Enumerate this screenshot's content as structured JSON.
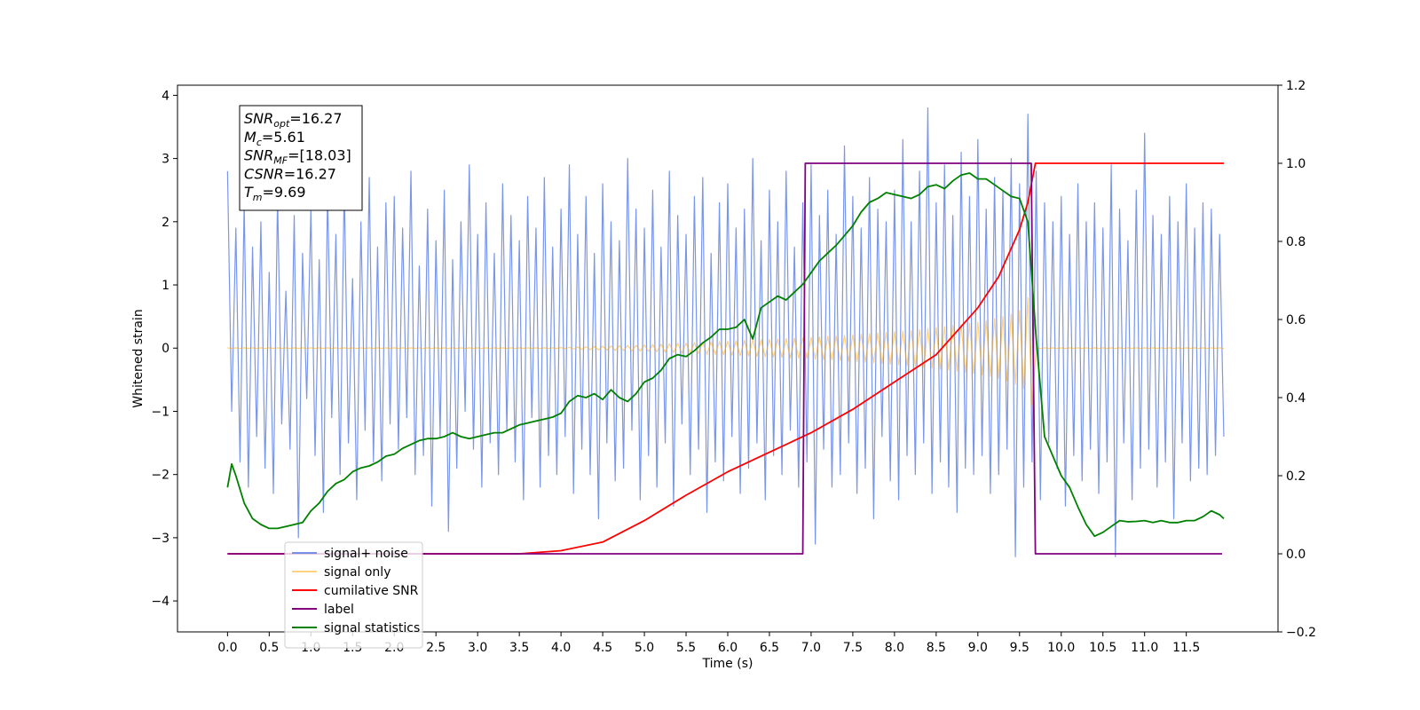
{
  "chart_data": {
    "type": "line",
    "xlabel": "Time (s)",
    "ylabel": "Whitened strain",
    "xlim": [
      -0.6,
      12.6
    ],
    "ylim": [
      -4.49,
      4.16
    ],
    "y2lim": [
      -0.2,
      1.2
    ],
    "xticks": [
      {
        "value": 0,
        "label": "0.0"
      },
      0.5,
      {
        "value": 1,
        "label": "1.0"
      },
      1.5,
      {
        "value": 2,
        "label": "2.0"
      },
      2.5,
      {
        "value": 3,
        "label": "3.0"
      },
      3.5,
      {
        "value": 4,
        "label": "4.0"
      },
      4.5,
      {
        "value": 5,
        "label": "5.0"
      },
      5.5,
      {
        "value": 6,
        "label": "6.0"
      },
      6.5,
      {
        "value": 7,
        "label": "7.0"
      },
      7.5,
      {
        "value": 8,
        "label": "8.0"
      },
      8.5,
      {
        "value": 9,
        "label": "9.0"
      },
      9.5,
      {
        "value": 10,
        "label": "10.0"
      },
      10.5,
      {
        "value": 11,
        "label": "11.0"
      },
      11.5
    ],
    "yticks": [
      {
        "value": -4,
        "label": "−4"
      },
      {
        "value": -3,
        "label": "−3"
      },
      {
        "value": -2,
        "label": "−2"
      },
      {
        "value": -1,
        "label": "−1"
      },
      0,
      1,
      2,
      3,
      4
    ],
    "y2ticks": [
      {
        "value": -0.2,
        "label": "−0.2"
      },
      {
        "value": 0,
        "label": "0.0"
      },
      0.2,
      0.4,
      0.6,
      0.8,
      {
        "value": 1,
        "label": "1.0"
      },
      1.2
    ],
    "legend": "lower left",
    "annotations": [
      {
        "main": "SNR",
        "sub": "opt",
        "text": "=16.27"
      },
      {
        "main": "M",
        "sub": "c",
        "text": "=5.61"
      },
      {
        "main": "SNR",
        "sub": "MF",
        "text": "=[18.03]"
      },
      {
        "main": "CSNR",
        "sub": "",
        "text": "=16.27"
      },
      {
        "main": "T",
        "sub": "m",
        "text": "=9.69"
      }
    ],
    "x": [
      0,
      0.05,
      0.1,
      0.15,
      0.2,
      0.25,
      0.3,
      0.35,
      0.4,
      0.45,
      0.5,
      0.55,
      0.6,
      0.65,
      0.7,
      0.75,
      0.8,
      0.85,
      0.9,
      0.95,
      1,
      1.05,
      1.1,
      1.15,
      1.2,
      1.25,
      1.3,
      1.35,
      1.4,
      1.45,
      1.5,
      1.55,
      1.6,
      1.65,
      1.7,
      1.75,
      1.8,
      1.85,
      1.9,
      1.95,
      2,
      2.05,
      2.1,
      2.15,
      2.2,
      2.25,
      2.3,
      2.35,
      2.4,
      2.45,
      2.5,
      2.55,
      2.6,
      2.65,
      2.7,
      2.75,
      2.8,
      2.85,
      2.9,
      2.95,
      3,
      3.05,
      3.1,
      3.15,
      3.2,
      3.25,
      3.3,
      3.35,
      3.4,
      3.45,
      3.5,
      3.55,
      3.6,
      3.65,
      3.7,
      3.75,
      3.8,
      3.85,
      3.9,
      3.95,
      4,
      4.05,
      4.1,
      4.15,
      4.2,
      4.25,
      4.3,
      4.35,
      4.4,
      4.45,
      4.5,
      4.55,
      4.6,
      4.65,
      4.7,
      4.75,
      4.8,
      4.85,
      4.9,
      4.95,
      5,
      5.05,
      5.1,
      5.15,
      5.2,
      5.25,
      5.3,
      5.35,
      5.4,
      5.45,
      5.5,
      5.55,
      5.6,
      5.65,
      5.7,
      5.75,
      5.8,
      5.85,
      5.9,
      5.95,
      6,
      6.05,
      6.1,
      6.15,
      6.2,
      6.25,
      6.3,
      6.35,
      6.4,
      6.45,
      6.5,
      6.55,
      6.6,
      6.65,
      6.7,
      6.75,
      6.8,
      6.85,
      6.9,
      6.95,
      7,
      7.05,
      7.1,
      7.15,
      7.2,
      7.25,
      7.3,
      7.35,
      7.4,
      7.45,
      7.5,
      7.55,
      7.6,
      7.65,
      7.7,
      7.75,
      7.8,
      7.85,
      7.9,
      7.95,
      8,
      8.05,
      8.1,
      8.15,
      8.2,
      8.25,
      8.3,
      8.35,
      8.4,
      8.45,
      8.5,
      8.55,
      8.6,
      8.65,
      8.7,
      8.75,
      8.8,
      8.85,
      8.9,
      8.95,
      9,
      9.05,
      9.1,
      9.15,
      9.2,
      9.25,
      9.3,
      9.35,
      9.4,
      9.45,
      9.5,
      9.55,
      9.6,
      9.65,
      9.7,
      9.75,
      9.8,
      9.85,
      9.9,
      9.95,
      10,
      10.05,
      10.1,
      10.15,
      10.2,
      10.25,
      10.3,
      10.35,
      10.4,
      10.45,
      10.5,
      10.55,
      10.6,
      10.65,
      10.7,
      10.75,
      10.8,
      10.85,
      10.9,
      10.95,
      11,
      11.05,
      11.1,
      11.15,
      11.2,
      11.25,
      11.3,
      11.35,
      11.4,
      11.45,
      11.5,
      11.55,
      11.6,
      11.65,
      11.7,
      11.75,
      11.8,
      11.85,
      11.9,
      11.95
    ],
    "series": [
      {
        "name": "signal+ noise",
        "color": "#4169e1",
        "values": [
          2.8,
          -1.0,
          1.9,
          -1.8,
          2.3,
          -2.2,
          1.6,
          -1.4,
          2.0,
          -1.9,
          1.2,
          -2.3,
          2.4,
          -1.2,
          0.9,
          -1.6,
          2.1,
          -3.0,
          1.5,
          -0.8,
          2.2,
          -1.7,
          1.4,
          -2.6,
          2.5,
          -1.1,
          1.8,
          -2.0,
          2.6,
          -1.5,
          1.1,
          -2.4,
          2.0,
          -1.3,
          2.7,
          -1.8,
          1.6,
          -2.1,
          2.3,
          -1.2,
          2.4,
          -1.6,
          1.9,
          -1.1,
          2.8,
          -2.0,
          1.3,
          -1.7,
          2.2,
          -2.5,
          1.7,
          -1.4,
          2.5,
          -2.9,
          1.4,
          -1.9,
          2.0,
          -1.0,
          2.9,
          -1.6,
          1.8,
          -2.2,
          2.3,
          -1.5,
          1.5,
          -2.0,
          2.6,
          -1.3,
          2.1,
          -1.8,
          1.7,
          -2.4,
          2.4,
          -1.1,
          1.9,
          -2.2,
          2.7,
          -1.7,
          1.6,
          -2.0,
          2.2,
          -1.4,
          2.9,
          -2.3,
          1.8,
          -1.6,
          2.4,
          -2.0,
          1.5,
          -2.7,
          2.6,
          -1.5,
          2.0,
          -2.1,
          1.7,
          -1.9,
          3.0,
          -1.3,
          2.2,
          -2.4,
          1.9,
          -1.7,
          2.5,
          -2.2,
          1.6,
          -1.5,
          2.8,
          -2.5,
          2.1,
          -1.2,
          1.8,
          -2.0,
          2.4,
          -1.6,
          2.7,
          -2.6,
          1.5,
          -1.8,
          2.3,
          -2.1,
          2.6,
          -1.4,
          1.9,
          -2.3,
          2.2,
          -1.9,
          3.0,
          -1.5,
          1.7,
          -2.4,
          2.5,
          -1.7,
          2.0,
          -2.0,
          2.8,
          -1.3,
          1.6,
          -2.2,
          2.3,
          -1.8,
          2.9,
          -3.1,
          2.1,
          -1.6,
          2.5,
          -2.2,
          1.8,
          -2.0,
          3.2,
          -1.5,
          2.4,
          -2.3,
          1.9,
          -1.9,
          2.7,
          -2.7,
          2.2,
          -1.4,
          2.0,
          -2.1,
          2.5,
          -2.4,
          3.3,
          -1.7,
          2.0,
          -2.0,
          2.8,
          -1.5,
          3.8,
          -2.3,
          2.3,
          -1.8,
          2.9,
          -2.2,
          2.1,
          -2.6,
          3.1,
          -1.9,
          2.4,
          -2.0,
          3.3,
          -1.7,
          2.2,
          -2.3,
          2.7,
          -2.0,
          2.5,
          -1.6,
          3.0,
          -3.3,
          2.6,
          -2.2,
          3.7,
          -1.8,
          2.8,
          -2.4,
          2.3,
          -1.5,
          2.0,
          -1.9,
          2.4,
          -2.5,
          1.8,
          -1.7,
          2.6,
          -2.1,
          2.0,
          -1.6,
          2.3,
          -2.3,
          1.9,
          -1.8,
          2.9,
          -3.3,
          2.2,
          -1.5,
          1.7,
          -2.4,
          2.5,
          -1.9,
          3.4,
          -1.6,
          2.1,
          -2.2,
          1.8,
          -1.8,
          2.4,
          -2.7,
          2.0,
          -1.5,
          2.6,
          -2.1,
          1.9,
          -1.9,
          2.3,
          -2.0,
          2.2,
          -1.7,
          1.8,
          -1.4
        ]
      },
      {
        "name": "signal only",
        "color": "#ffa500",
        "values": [
          0.005,
          -0.005,
          0.005,
          -0.005,
          0.005,
          -0.005,
          0.005,
          -0.005,
          0.005,
          -0.005,
          0.005,
          -0.005,
          0.005,
          -0.005,
          0.005,
          -0.005,
          0.005,
          -0.005,
          0.005,
          -0.005,
          0.005,
          -0.005,
          0.005,
          -0.005,
          0.005,
          -0.005,
          0.005,
          -0.005,
          0.005,
          -0.005,
          0.005,
          -0.005,
          0.005,
          -0.005,
          0.005,
          -0.005,
          0.005,
          -0.005,
          0.005,
          -0.005,
          0.005,
          -0.005,
          0.005,
          -0.005,
          0.005,
          -0.005,
          0.005,
          -0.005,
          0.005,
          -0.005,
          0.005,
          -0.005,
          0.005,
          -0.005,
          0.005,
          -0.005,
          0.005,
          -0.005,
          0.005,
          -0.005,
          0.005,
          -0.005,
          0.005,
          -0.005,
          0.005,
          -0.005,
          0.005,
          -0.005,
          0.005,
          -0.005,
          0.005,
          -0.005,
          0.005,
          -0.005,
          0.005,
          -0.005,
          0.005,
          -0.005,
          0.005,
          -0.005,
          0.01,
          -0.012,
          0.014,
          -0.016,
          0.018,
          -0.02,
          0.022,
          -0.024,
          0.026,
          -0.028,
          0.03,
          -0.032,
          0.034,
          -0.036,
          0.038,
          -0.04,
          0.042,
          -0.044,
          0.046,
          -0.048,
          0.05,
          -0.053,
          0.056,
          -0.059,
          0.062,
          -0.065,
          0.068,
          -0.071,
          0.074,
          -0.077,
          0.08,
          -0.083,
          0.086,
          -0.089,
          0.092,
          -0.095,
          0.098,
          -0.1,
          0.103,
          -0.106,
          0.11,
          -0.113,
          0.116,
          -0.119,
          0.122,
          -0.125,
          0.128,
          -0.131,
          0.134,
          -0.137,
          0.14,
          -0.143,
          0.146,
          -0.149,
          0.152,
          -0.155,
          0.158,
          -0.161,
          0.164,
          -0.167,
          0.17,
          -0.174,
          0.178,
          -0.182,
          0.186,
          -0.19,
          0.194,
          -0.198,
          0.202,
          -0.206,
          0.21,
          -0.215,
          0.22,
          -0.225,
          0.23,
          -0.235,
          0.24,
          -0.245,
          0.25,
          -0.255,
          0.26,
          -0.266,
          0.272,
          -0.278,
          0.284,
          -0.29,
          0.297,
          -0.304,
          0.311,
          -0.318,
          0.325,
          -0.333,
          0.341,
          -0.349,
          0.357,
          -0.366,
          0.375,
          -0.384,
          0.393,
          -0.403,
          0.413,
          -0.425,
          0.437,
          -0.45,
          0.465,
          -0.48,
          0.5,
          -0.52,
          0.54,
          -0.57,
          0.6,
          -0.64,
          0.8,
          -0.9,
          0.005,
          -0.005,
          0.005,
          -0.005,
          0.005,
          -0.005,
          0.005,
          -0.005,
          0.005,
          -0.005,
          0.005,
          -0.005,
          0.005,
          -0.005,
          0.005,
          -0.005,
          0.005,
          -0.005,
          0.005,
          -0.005,
          0.005,
          -0.005,
          0.005,
          -0.005,
          0.005,
          -0.005,
          0.005,
          -0.005,
          0.005,
          -0.005,
          0.005,
          -0.005,
          0.005,
          -0.005,
          0.005,
          -0.005,
          0.005,
          -0.005,
          0.005,
          -0.005,
          0.005,
          -0.005,
          0.005,
          -0.005,
          0.005,
          -0.005
        ]
      },
      {
        "name": "cumilative SNR",
        "color": "#ff0000",
        "axis": "y2",
        "x": [
          0,
          3.5,
          4,
          4.5,
          5,
          5.5,
          6,
          6.5,
          7,
          7.5,
          8,
          8.5,
          9,
          9.25,
          9.5,
          9.6,
          9.69,
          11.95
        ],
        "values": [
          0,
          0,
          0.008,
          0.03,
          0.085,
          0.15,
          0.21,
          0.26,
          0.31,
          0.37,
          0.44,
          0.51,
          0.63,
          0.71,
          0.83,
          0.9,
          1,
          1
        ]
      },
      {
        "name": "label",
        "color": "#800080",
        "axis": "y2",
        "x": [
          0,
          6.9,
          6.93,
          9.64,
          9.69,
          11.93
        ],
        "values": [
          0,
          0,
          1,
          1,
          0,
          0
        ]
      },
      {
        "name": "signal statistics",
        "color": "#008000",
        "axis": "y2",
        "x": [
          0,
          0.05,
          0.1,
          0.2,
          0.3,
          0.4,
          0.5,
          0.6,
          0.7,
          0.8,
          0.9,
          1,
          1.1,
          1.2,
          1.3,
          1.4,
          1.5,
          1.6,
          1.7,
          1.8,
          1.9,
          2,
          2.1,
          2.2,
          2.3,
          2.4,
          2.5,
          2.6,
          2.7,
          2.8,
          2.9,
          3,
          3.1,
          3.2,
          3.3,
          3.4,
          3.5,
          3.6,
          3.7,
          3.8,
          3.9,
          4,
          4.1,
          4.2,
          4.3,
          4.4,
          4.5,
          4.6,
          4.7,
          4.8,
          4.9,
          5,
          5.1,
          5.2,
          5.3,
          5.4,
          5.5,
          5.6,
          5.7,
          5.8,
          5.9,
          6,
          6.1,
          6.2,
          6.3,
          6.4,
          6.5,
          6.6,
          6.7,
          6.8,
          6.9,
          7,
          7.1,
          7.2,
          7.3,
          7.4,
          7.5,
          7.6,
          7.7,
          7.8,
          7.9,
          8,
          8.1,
          8.2,
          8.3,
          8.4,
          8.5,
          8.6,
          8.7,
          8.8,
          8.9,
          9,
          9.1,
          9.2,
          9.3,
          9.4,
          9.5,
          9.6,
          9.7,
          9.8,
          9.9,
          10,
          10.1,
          10.2,
          10.3,
          10.4,
          10.5,
          10.6,
          10.7,
          10.8,
          10.9,
          11,
          11.1,
          11.2,
          11.3,
          11.4,
          11.5,
          11.6,
          11.7,
          11.8,
          11.9,
          11.95
        ],
        "values": [
          0.17,
          0.23,
          0.2,
          0.13,
          0.09,
          0.075,
          0.065,
          0.065,
          0.07,
          0.075,
          0.08,
          0.11,
          0.13,
          0.16,
          0.18,
          0.19,
          0.21,
          0.22,
          0.225,
          0.235,
          0.25,
          0.255,
          0.27,
          0.28,
          0.29,
          0.295,
          0.295,
          0.3,
          0.31,
          0.3,
          0.295,
          0.3,
          0.305,
          0.31,
          0.31,
          0.32,
          0.33,
          0.335,
          0.34,
          0.345,
          0.35,
          0.36,
          0.39,
          0.405,
          0.4,
          0.41,
          0.395,
          0.42,
          0.4,
          0.39,
          0.41,
          0.44,
          0.45,
          0.47,
          0.5,
          0.51,
          0.505,
          0.52,
          0.54,
          0.555,
          0.575,
          0.575,
          0.58,
          0.6,
          0.55,
          0.63,
          0.645,
          0.66,
          0.65,
          0.67,
          0.69,
          0.72,
          0.75,
          0.77,
          0.79,
          0.815,
          0.84,
          0.875,
          0.9,
          0.91,
          0.925,
          0.92,
          0.915,
          0.91,
          0.92,
          0.94,
          0.945,
          0.935,
          0.955,
          0.97,
          0.975,
          0.96,
          0.96,
          0.945,
          0.93,
          0.915,
          0.91,
          0.85,
          0.55,
          0.3,
          0.25,
          0.2,
          0.17,
          0.12,
          0.075,
          0.045,
          0.055,
          0.07,
          0.085,
          0.082,
          0.083,
          0.085,
          0.08,
          0.085,
          0.08,
          0.08,
          0.085,
          0.085,
          0.095,
          0.11,
          0.1,
          0.09
        ]
      }
    ]
  }
}
